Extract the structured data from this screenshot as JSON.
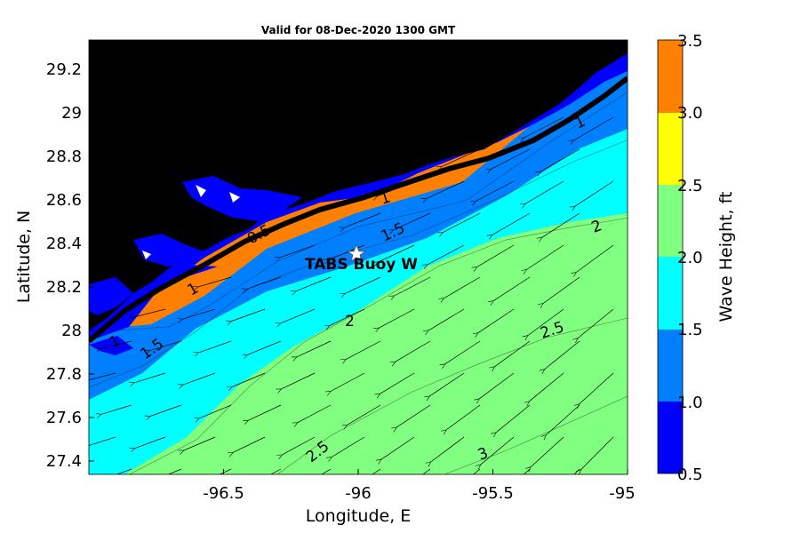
{
  "title": "Valid for 08-Dec-2020 1300 GMT",
  "xlabel": "Longitude, E",
  "ylabel": "Latitude, N",
  "x_ticks": [
    "-96.5",
    "-96",
    "-95.5",
    "-95"
  ],
  "y_ticks": [
    "29.2",
    "29",
    "28.8",
    "28.6",
    "28.4",
    "28.2",
    "28",
    "27.8",
    "27.6",
    "27.4"
  ],
  "colorbar": {
    "label": "Wave Height, ft",
    "ticks": [
      "0.5",
      "1.0",
      "1.5",
      "2.0",
      "2.5",
      "3.0",
      "3.5"
    ],
    "colors": [
      "#0000ff",
      "#0080ff",
      "#00ffff",
      "#80ff80",
      "#ffff00",
      "#ff8000"
    ]
  },
  "station": {
    "label": "TABS Buoy W"
  },
  "contour_labels": [
    "1",
    "1",
    "1",
    "1",
    "0.5",
    "1.5",
    "1.5",
    "2",
    "2",
    "2.5",
    "2.5",
    "3"
  ],
  "chart_data": {
    "type": "heatmap",
    "title": "Valid for 08-Dec-2020 1300 GMT",
    "xlabel": "Longitude, E",
    "ylabel": "Latitude, N",
    "xlim": [
      -97.0,
      -95.0
    ],
    "ylim": [
      27.34,
      29.34
    ],
    "variable": "Wave Height, ft",
    "levels": [
      0.5,
      1.0,
      1.5,
      2.0,
      2.5,
      3.0,
      3.5
    ],
    "colors": [
      "#0000ff",
      "#0080ff",
      "#00ffff",
      "#80ff80",
      "#ffff00",
      "#ff8000"
    ],
    "land_color": "#000000",
    "vector_field": "wave direction arrows pointing roughly west / southwest",
    "station": {
      "name": "TABS Buoy W",
      "lon": -96.0,
      "lat": 28.35
    },
    "contours": [
      {
        "level": 1.0,
        "points": [
          [
            -96.92,
            28.0
          ],
          [
            -96.7,
            28.02
          ],
          [
            -96.55,
            28.12
          ],
          [
            -96.3,
            28.32
          ],
          [
            -96.0,
            28.48
          ],
          [
            -95.6,
            28.6
          ],
          [
            -95.3,
            28.86
          ],
          [
            -95.0,
            29.1
          ]
        ]
      },
      {
        "level": 1.5,
        "points": [
          [
            -97.0,
            27.74
          ],
          [
            -96.8,
            27.84
          ],
          [
            -96.6,
            28.0
          ],
          [
            -96.4,
            28.2
          ],
          [
            -96.1,
            28.34
          ],
          [
            -95.8,
            28.44
          ],
          [
            -95.5,
            28.6
          ],
          [
            -95.2,
            28.78
          ],
          [
            -95.0,
            28.88
          ]
        ]
      },
      {
        "level": 2.0,
        "points": [
          [
            -96.85,
            27.34
          ],
          [
            -96.6,
            27.5
          ],
          [
            -96.4,
            27.75
          ],
          [
            -96.2,
            27.95
          ],
          [
            -95.95,
            28.12
          ],
          [
            -95.7,
            28.3
          ],
          [
            -95.45,
            28.42
          ],
          [
            -95.2,
            28.48
          ],
          [
            -95.0,
            28.52
          ]
        ]
      },
      {
        "level": 2.5,
        "points": [
          [
            -96.3,
            27.34
          ],
          [
            -96.1,
            27.52
          ],
          [
            -95.8,
            27.72
          ],
          [
            -95.55,
            27.85
          ],
          [
            -95.3,
            27.97
          ],
          [
            -95.0,
            28.06
          ]
        ]
      },
      {
        "level": 3.0,
        "points": [
          [
            -95.68,
            27.34
          ],
          [
            -95.45,
            27.45
          ],
          [
            -95.25,
            27.56
          ],
          [
            -95.0,
            27.7
          ]
        ]
      }
    ]
  }
}
